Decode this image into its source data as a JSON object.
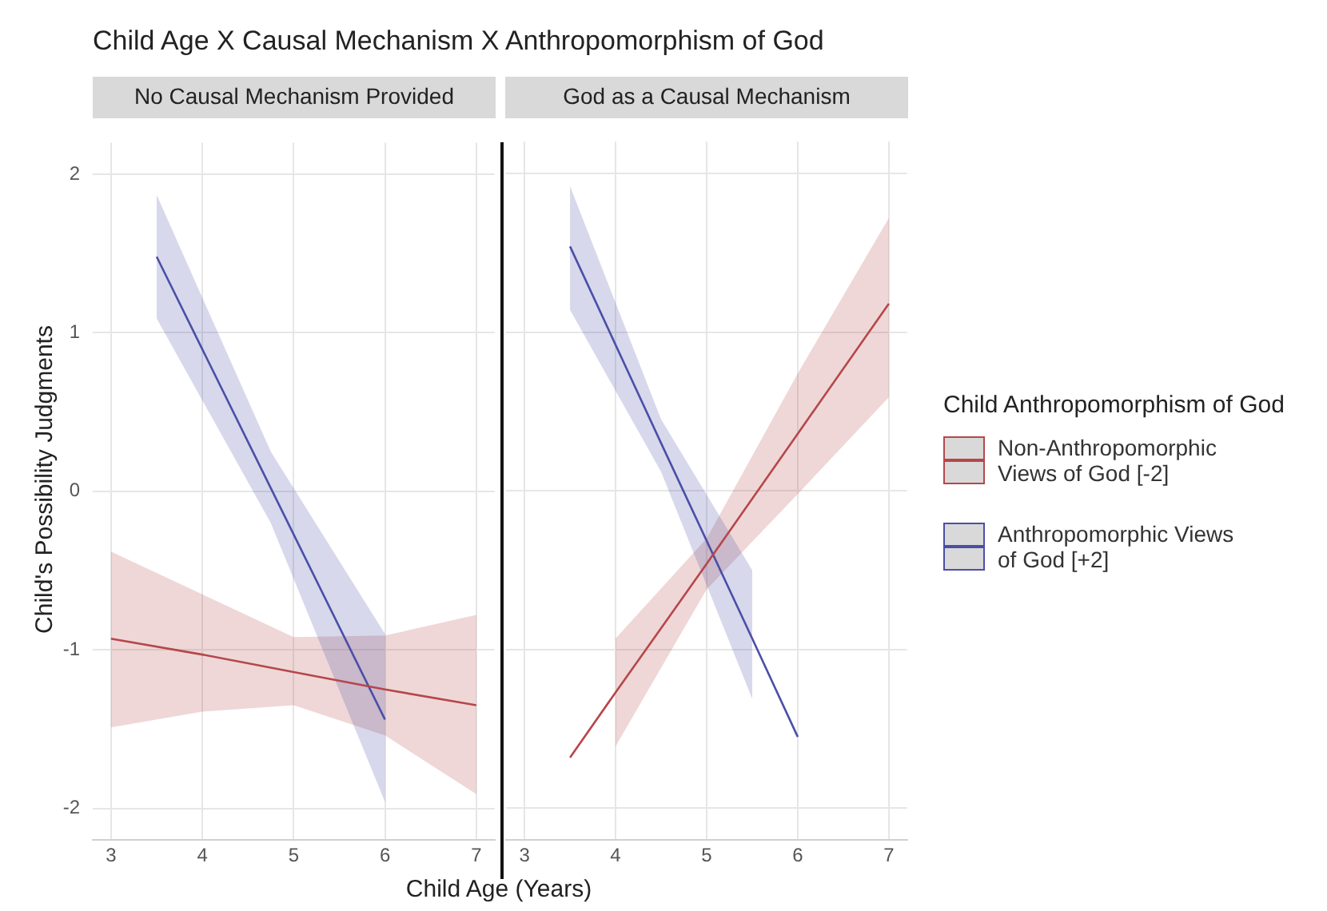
{
  "chart_data": [
    {
      "type": "line",
      "title": "Child Age X Causal Mechanism X Anthropomorphism of God",
      "subtitle": "No Causal Mechanism Provided",
      "xlabel": "Child Age (Years)",
      "ylabel": "Child's Possibility Judgments",
      "xlim": [
        2.8,
        7.2
      ],
      "xticks": [
        3,
        4,
        5,
        6,
        7
      ],
      "ylim": [
        -2.2,
        2.2
      ],
      "yticks": [
        -2,
        -1,
        0,
        1,
        2
      ],
      "grid": true,
      "legend": false,
      "series": [
        {
          "color": "#b5474b",
          "x": [
            3,
            4,
            5,
            6,
            7
          ],
          "values": [
            -0.93,
            -1.03,
            -1.14,
            -1.25,
            -1.35
          ],
          "lower": [
            -1.49,
            -1.39,
            -1.35,
            -1.54,
            -1.91
          ],
          "upper": [
            -0.38,
            -0.65,
            -0.92,
            -0.91,
            -0.78
          ]
        },
        {
          "color": "#4b4fa6",
          "x": [
            3.5,
            4.75,
            6
          ],
          "values": [
            1.48,
            0.02,
            -1.44
          ],
          "lower": [
            1.09,
            -0.2,
            -1.96
          ],
          "upper": [
            1.87,
            0.25,
            -0.9
          ]
        }
      ]
    },
    {
      "type": "line",
      "subtitle": "God as a Causal Mechanism",
      "legend_title": "Child Anthropomorphism of God",
      "xlim": [
        2.8,
        7.2
      ],
      "xticks": [
        3,
        4,
        5,
        6,
        7
      ],
      "ylim": [
        -2.2,
        2.2
      ],
      "yticks": [
        -2,
        -1,
        0,
        1,
        2
      ],
      "grid": true,
      "legend": "right",
      "tick_labels": "x",
      "series": [
        {
          "name": "Non-Anthropomorphic Views of God [-2]",
          "color": "#b5474b",
          "x": [
            3.5,
            4,
            5,
            6,
            7
          ],
          "values": [
            -1.68,
            -1.27,
            -0.46,
            0.36,
            1.18
          ],
          "lower": [
            null,
            -1.61,
            -0.62,
            -0.02,
            0.59
          ],
          "upper": [
            null,
            -0.93,
            -0.3,
            0.74,
            1.72
          ]
        },
        {
          "name": "Anthropomorphic Views of God [+2]",
          "color": "#4b4fa6",
          "x": [
            3.5,
            4.5,
            5.5,
            6
          ],
          "values": [
            1.54,
            0.3,
            -0.93,
            -1.55
          ],
          "lower": [
            1.14,
            0.12,
            -1.31,
            null
          ],
          "upper": [
            1.92,
            0.45,
            -0.5,
            null
          ]
        }
      ]
    }
  ]
}
